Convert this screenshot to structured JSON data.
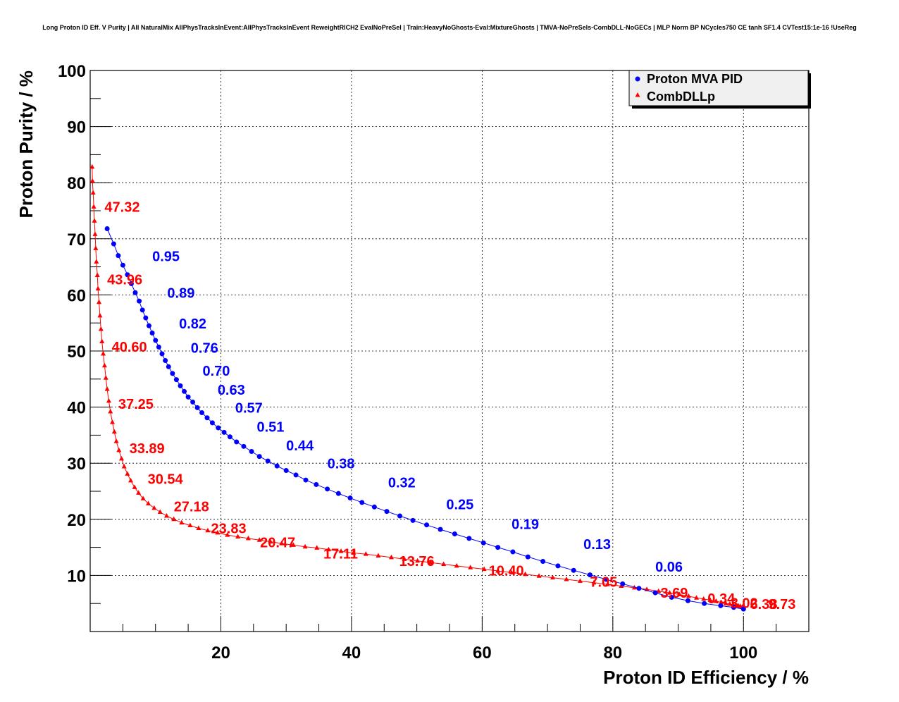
{
  "chart_data": {
    "type": "scatter",
    "title": "Long Proton ID Eff. V Purity | All NaturalMix AllPhysTracksInEvent:AllPhysTracksInEvent ReweightRICH2 EvalNoPreSel | Train:HeavyNoGhosts-Eval:MixtureGhosts | TMVA-NoPreSels-CombDLL-NoGECs | MLP Norm BP NCycles750 CE tanh SF1.4 CVTest15:1e-16 !UseReg",
    "xlabel": "Proton ID Efficiency / %",
    "ylabel": "Proton Purity / %",
    "xlim": [
      0,
      110
    ],
    "ylim": [
      0,
      100
    ],
    "xticks": [
      20,
      40,
      60,
      80,
      100
    ],
    "yticks": [
      10,
      20,
      30,
      40,
      50,
      60,
      70,
      80,
      90,
      100
    ],
    "grid": true,
    "legend_position": "top-right",
    "series": [
      {
        "name": "Proton MVA PID",
        "color": "#0000ff",
        "marker": "circle",
        "points": [
          [
            2.6,
            71.8
          ],
          [
            3.6,
            69.1
          ],
          [
            4.3,
            67.0
          ],
          [
            5.0,
            65.3
          ],
          [
            5.7,
            63.6
          ],
          [
            6.3,
            62.0
          ],
          [
            6.9,
            60.4
          ],
          [
            7.5,
            58.9
          ],
          [
            8.0,
            57.3
          ],
          [
            8.5,
            55.9
          ],
          [
            9.0,
            54.5
          ],
          [
            9.5,
            53.2
          ],
          [
            10.0,
            51.9
          ],
          [
            10.5,
            50.7
          ],
          [
            11.0,
            49.5
          ],
          [
            11.5,
            48.3
          ],
          [
            12.0,
            47.2
          ],
          [
            12.6,
            46.0
          ],
          [
            13.2,
            44.9
          ],
          [
            13.8,
            43.8
          ],
          [
            14.4,
            42.8
          ],
          [
            15.0,
            41.8
          ],
          [
            15.7,
            40.9
          ],
          [
            16.4,
            39.9
          ],
          [
            17.1,
            39.0
          ],
          [
            17.9,
            38.1
          ],
          [
            18.7,
            37.2
          ],
          [
            19.6,
            36.3
          ],
          [
            20.5,
            35.5
          ],
          [
            21.4,
            34.7
          ],
          [
            22.4,
            33.8
          ],
          [
            23.5,
            33.0
          ],
          [
            24.7,
            32.1
          ],
          [
            25.9,
            31.2
          ],
          [
            27.2,
            30.4
          ],
          [
            28.6,
            29.5
          ],
          [
            30.0,
            28.7
          ],
          [
            31.5,
            27.9
          ],
          [
            33.0,
            27.0
          ],
          [
            34.6,
            26.2
          ],
          [
            36.3,
            25.4
          ],
          [
            38.0,
            24.6
          ],
          [
            39.8,
            23.8
          ],
          [
            41.6,
            23.0
          ],
          [
            43.5,
            22.2
          ],
          [
            45.4,
            21.4
          ],
          [
            47.4,
            20.6
          ],
          [
            49.4,
            19.8
          ],
          [
            51.5,
            19.0
          ],
          [
            53.6,
            18.2
          ],
          [
            55.8,
            17.4
          ],
          [
            58.0,
            16.6
          ],
          [
            60.2,
            15.8
          ],
          [
            62.4,
            15.0
          ],
          [
            64.7,
            14.2
          ],
          [
            67.0,
            13.3
          ],
          [
            69.3,
            12.5
          ],
          [
            71.6,
            11.7
          ],
          [
            74.0,
            10.9
          ],
          [
            76.5,
            10.1
          ],
          [
            79.0,
            9.3
          ],
          [
            81.5,
            8.5
          ],
          [
            84.0,
            7.7
          ],
          [
            86.5,
            6.9
          ],
          [
            89.0,
            6.1
          ],
          [
            91.5,
            5.5
          ],
          [
            94.0,
            5.0
          ],
          [
            96.5,
            4.6
          ],
          [
            98.5,
            4.3
          ],
          [
            100.0,
            4.0
          ]
        ],
        "labels": [
          {
            "text": "0.95",
            "x": 9.5,
            "y": 66.0
          },
          {
            "text": "0.89",
            "x": 11.8,
            "y": 59.5
          },
          {
            "text": "0.82",
            "x": 13.6,
            "y": 54.0
          },
          {
            "text": "0.76",
            "x": 15.4,
            "y": 49.7
          },
          {
            "text": "0.70",
            "x": 17.2,
            "y": 45.6
          },
          {
            "text": "0.63",
            "x": 19.5,
            "y": 42.2
          },
          {
            "text": "0.57",
            "x": 22.2,
            "y": 39.0
          },
          {
            "text": "0.51",
            "x": 25.5,
            "y": 35.6
          },
          {
            "text": "0.44",
            "x": 30.0,
            "y": 32.3
          },
          {
            "text": "0.38",
            "x": 36.3,
            "y": 29.1
          },
          {
            "text": "0.32",
            "x": 45.6,
            "y": 25.7
          },
          {
            "text": "0.25",
            "x": 54.5,
            "y": 21.8
          },
          {
            "text": "0.19",
            "x": 64.5,
            "y": 18.3
          },
          {
            "text": "0.13",
            "x": 75.5,
            "y": 14.7
          },
          {
            "text": "0.06",
            "x": 86.5,
            "y": 10.7
          }
        ]
      },
      {
        "name": "CombDLLp",
        "color": "#ff0000",
        "marker": "triangle",
        "points": [
          [
            0.3,
            82.8
          ],
          [
            0.35,
            80.3
          ],
          [
            0.45,
            78.2
          ],
          [
            0.55,
            75.7
          ],
          [
            0.65,
            73.2
          ],
          [
            0.75,
            70.8
          ],
          [
            0.85,
            68.3
          ],
          [
            0.95,
            65.9
          ],
          [
            1.1,
            63.5
          ],
          [
            1.2,
            61.1
          ],
          [
            1.35,
            58.7
          ],
          [
            1.5,
            56.3
          ],
          [
            1.65,
            53.9
          ],
          [
            1.8,
            51.7
          ],
          [
            2.0,
            49.5
          ],
          [
            2.2,
            47.4
          ],
          [
            2.4,
            45.2
          ],
          [
            2.6,
            43.2
          ],
          [
            2.85,
            41.1
          ],
          [
            3.1,
            39.2
          ],
          [
            3.4,
            37.3
          ],
          [
            3.7,
            35.6
          ],
          [
            4.0,
            33.9
          ],
          [
            4.4,
            32.3
          ],
          [
            4.8,
            30.8
          ],
          [
            5.2,
            29.4
          ],
          [
            5.7,
            28.1
          ],
          [
            6.2,
            26.9
          ],
          [
            6.8,
            25.7
          ],
          [
            7.4,
            24.7
          ],
          [
            8.1,
            23.7
          ],
          [
            8.9,
            22.8
          ],
          [
            9.8,
            22.0
          ],
          [
            10.7,
            21.3
          ],
          [
            11.7,
            20.6
          ],
          [
            12.8,
            20.0
          ],
          [
            14.0,
            19.4
          ],
          [
            15.3,
            18.9
          ],
          [
            16.6,
            18.4
          ],
          [
            18.0,
            18.0
          ],
          [
            19.5,
            17.6
          ],
          [
            21.0,
            17.2
          ],
          [
            22.6,
            16.9
          ],
          [
            24.2,
            16.6
          ],
          [
            25.9,
            16.3
          ],
          [
            27.6,
            16.0
          ],
          [
            29.3,
            15.7
          ],
          [
            31.1,
            15.4
          ],
          [
            32.9,
            15.1
          ],
          [
            34.7,
            14.9
          ],
          [
            36.5,
            14.6
          ],
          [
            38.4,
            14.3
          ],
          [
            40.3,
            14.0
          ],
          [
            42.2,
            13.8
          ],
          [
            44.1,
            13.5
          ],
          [
            46.1,
            13.2
          ],
          [
            48.1,
            12.9
          ],
          [
            50.1,
            12.6
          ],
          [
            52.1,
            12.3
          ],
          [
            54.1,
            12.0
          ],
          [
            56.1,
            11.7
          ],
          [
            58.2,
            11.4
          ],
          [
            60.3,
            11.1
          ],
          [
            62.4,
            10.8
          ],
          [
            64.5,
            10.5
          ],
          [
            66.6,
            10.2
          ],
          [
            68.7,
            9.9
          ],
          [
            70.8,
            9.6
          ],
          [
            72.9,
            9.3
          ],
          [
            75.0,
            9.0
          ],
          [
            77.1,
            8.7
          ],
          [
            79.2,
            8.4
          ],
          [
            81.3,
            8.1
          ],
          [
            83.3,
            7.8
          ],
          [
            85.2,
            7.5
          ],
          [
            87.0,
            7.2
          ],
          [
            88.7,
            6.9
          ],
          [
            90.2,
            6.6
          ],
          [
            91.6,
            6.3
          ],
          [
            92.8,
            6.0
          ],
          [
            93.9,
            5.8
          ],
          [
            94.9,
            5.6
          ],
          [
            95.8,
            5.4
          ],
          [
            96.6,
            5.2
          ],
          [
            97.3,
            5.0
          ],
          [
            97.9,
            4.9
          ],
          [
            98.4,
            4.8
          ],
          [
            98.8,
            4.7
          ],
          [
            99.2,
            4.6
          ],
          [
            99.5,
            4.5
          ],
          [
            99.8,
            4.4
          ],
          [
            100.0,
            4.3
          ]
        ],
        "labels": [
          {
            "text": "47.32",
            "x": 2.2,
            "y": 74.8
          },
          {
            "text": "43.96",
            "x": 2.6,
            "y": 61.9
          },
          {
            "text": "40.60",
            "x": 3.3,
            "y": 49.9
          },
          {
            "text": "37.25",
            "x": 4.3,
            "y": 39.7
          },
          {
            "text": "33.89",
            "x": 6.0,
            "y": 31.8
          },
          {
            "text": "30.54",
            "x": 8.8,
            "y": 26.3
          },
          {
            "text": "27.18",
            "x": 12.8,
            "y": 21.4
          },
          {
            "text": "23.83",
            "x": 18.5,
            "y": 17.5
          },
          {
            "text": "20.47",
            "x": 26.0,
            "y": 15.0
          },
          {
            "text": "17.11",
            "x": 35.7,
            "y": 13.0
          },
          {
            "text": "13.76",
            "x": 47.3,
            "y": 11.7
          },
          {
            "text": "10.40",
            "x": 61.0,
            "y": 10.0
          },
          {
            "text": "7.05",
            "x": 76.5,
            "y": 8.0
          },
          {
            "text": "3.69",
            "x": 87.3,
            "y": 6.0
          },
          {
            "text": "0.34",
            "x": 94.5,
            "y": 5.0
          },
          {
            "text": "3.02",
            "x": 98.0,
            "y": 4.2
          },
          {
            "text": "6.38",
            "x": 101.0,
            "y": 4.0
          },
          {
            "text": "9.73",
            "x": 103.8,
            "y": 4.0
          }
        ]
      }
    ]
  }
}
